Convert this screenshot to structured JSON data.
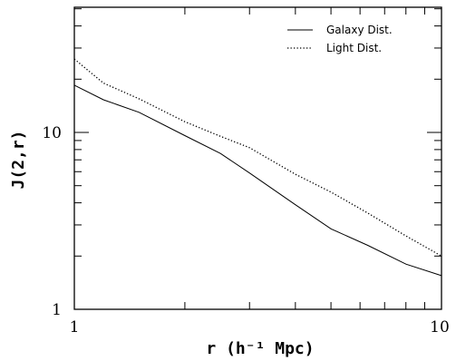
{
  "chart_data": {
    "type": "line",
    "title": "",
    "xlabel": "r (h⁻¹ Mpc)",
    "ylabel": "J(2,r)",
    "xscale": "log",
    "yscale": "log",
    "xlim": [
      1,
      10
    ],
    "ylim": [
      1,
      50
    ],
    "grid": false,
    "legend_position": "top-right",
    "x_tick_labels": [
      "1",
      "10"
    ],
    "y_tick_labels": [
      "1",
      "10"
    ],
    "series": [
      {
        "name": "Galaxy Dist.",
        "line_style": "solid",
        "color": "#000000",
        "x": [
          1.0,
          1.2,
          1.5,
          2.0,
          2.5,
          3.0,
          4.0,
          5.0,
          6.3,
          8.0,
          10.0
        ],
        "y": [
          18.5,
          15.3,
          13.0,
          9.6,
          7.6,
          5.9,
          3.9,
          2.85,
          2.3,
          1.8,
          1.55
        ]
      },
      {
        "name": "Light Dist.",
        "line_style": "dotted",
        "color": "#000000",
        "x": [
          1.0,
          1.2,
          1.5,
          2.0,
          2.5,
          3.0,
          4.0,
          5.0,
          6.3,
          8.0,
          10.0
        ],
        "y": [
          26.0,
          19.0,
          15.5,
          11.5,
          9.5,
          8.2,
          5.8,
          4.6,
          3.5,
          2.6,
          2.0
        ]
      }
    ]
  }
}
